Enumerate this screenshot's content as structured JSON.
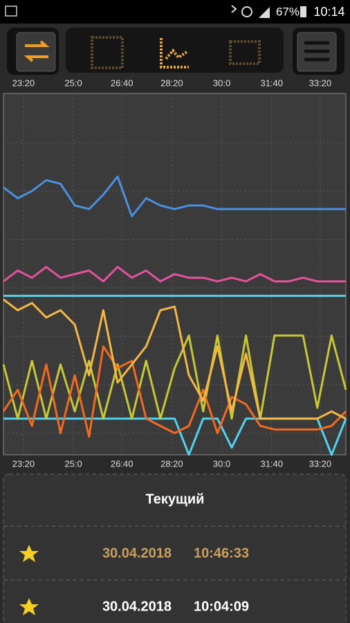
{
  "status_bar": {
    "battery": "67%",
    "time": "10:14"
  },
  "chart_data": {
    "type": "line",
    "xlim": [
      0,
      24
    ],
    "xticks": [
      {
        "value": 1.4,
        "label": "23:20"
      },
      {
        "value": 4.9,
        "label": "25:0"
      },
      {
        "value": 8.3,
        "label": "26:40"
      },
      {
        "value": 11.8,
        "label": "28:20"
      },
      {
        "value": 15.3,
        "label": "30:0"
      },
      {
        "value": 18.8,
        "label": "31:40"
      },
      {
        "value": 22.2,
        "label": "33:20"
      }
    ],
    "ylim": [
      0,
      100
    ],
    "grid": true,
    "series": [
      {
        "color": "#4a8fe0",
        "values": [
          74,
          71,
          73,
          76,
          75,
          69,
          68,
          72,
          77,
          66,
          71,
          69,
          68,
          69,
          69,
          68,
          68,
          68,
          68,
          68,
          68,
          68,
          68,
          68,
          68
        ]
      },
      {
        "color": "#e6529a",
        "values": [
          48,
          51,
          49,
          52,
          49,
          50,
          51,
          48,
          52,
          49,
          51,
          48,
          50,
          49,
          49,
          48,
          49,
          48,
          50,
          48,
          48,
          49,
          48,
          48,
          48
        ]
      },
      {
        "color": "#5bd0e6",
        "values": [
          44,
          44,
          44,
          44,
          44,
          44,
          44,
          44,
          44,
          44,
          44,
          44,
          44,
          44,
          44,
          44,
          44,
          44,
          44,
          44,
          44,
          44,
          44,
          44,
          44
        ]
      },
      {
        "color": "#4fd3f0",
        "values": [
          10,
          10,
          10,
          10,
          10,
          10,
          10,
          10,
          10,
          10,
          10,
          10,
          10,
          0,
          10,
          10,
          2,
          10,
          10,
          10,
          10,
          10,
          10,
          0,
          10
        ]
      },
      {
        "color": "#c6c834",
        "values": [
          25,
          10,
          26,
          10,
          25,
          12,
          26,
          10,
          25,
          10,
          26,
          10,
          24,
          33,
          12,
          33,
          10,
          33,
          10,
          33,
          33,
          33,
          13,
          33,
          18
        ]
      },
      {
        "color": "#f26a21",
        "values": [
          12,
          18,
          8,
          25,
          6,
          22,
          5,
          30,
          24,
          26,
          10,
          8,
          6,
          8,
          18,
          6,
          16,
          14,
          8,
          7,
          7,
          7,
          7,
          8,
          12
        ]
      },
      {
        "color": "#f5b744",
        "values": [
          43,
          40,
          42,
          38,
          40,
          36,
          22,
          40,
          20,
          25,
          30,
          40,
          41,
          22,
          15,
          30,
          12,
          28,
          10,
          10,
          10,
          10,
          10,
          12,
          10
        ]
      }
    ]
  },
  "list": {
    "header": "Текущий",
    "rows": [
      {
        "date": "30.04.2018",
        "time": "10:46:33"
      },
      {
        "date": "30.04.2018",
        "time": "10:04:09"
      }
    ]
  }
}
